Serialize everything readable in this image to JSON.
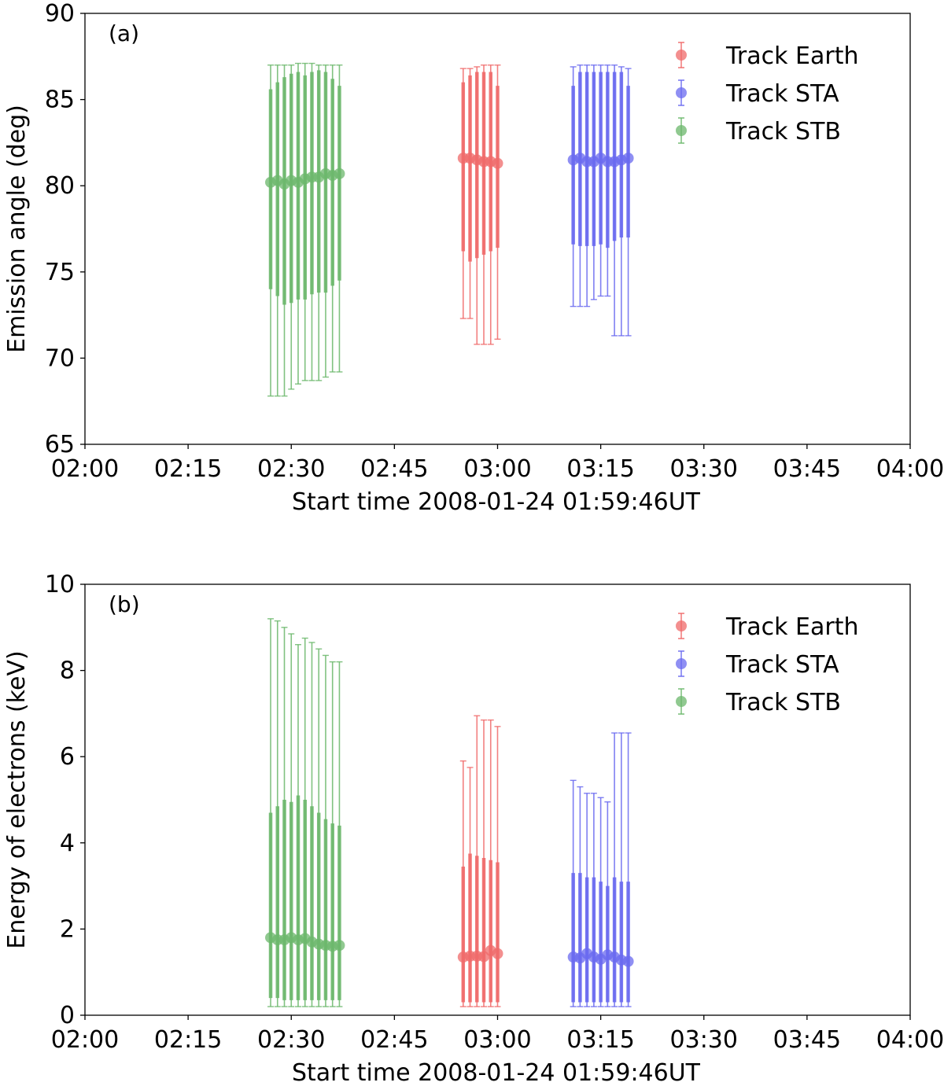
{
  "chart_data": [
    {
      "type": "errorbar",
      "panel_label": "(a)",
      "xlabel": "Start time 2008-01-24 01:59:46UT",
      "ylabel": "Emission angle (deg)",
      "xlim_minutes": [
        0,
        120
      ],
      "ylim": [
        65,
        90
      ],
      "x_tick_values": [
        0,
        15,
        30,
        45,
        60,
        75,
        90,
        105,
        120
      ],
      "x_tick_labels": [
        "02:00",
        "02:15",
        "02:30",
        "02:45",
        "03:00",
        "03:15",
        "03:30",
        "03:45",
        "04:00"
      ],
      "y_ticks": [
        65,
        70,
        75,
        80,
        85,
        90
      ],
      "legend_position": "top-right",
      "series": [
        {
          "name": "Track Earth",
          "color": "#f06a6a",
          "x": [
            55.0,
            56.0,
            57.0,
            58.0,
            59.0,
            60.0
          ],
          "y": [
            81.6,
            81.6,
            81.5,
            81.4,
            81.4,
            81.3
          ],
          "inner": [
            [
              76.2,
              86.0
            ],
            [
              75.6,
              86.4
            ],
            [
              75.8,
              86.6
            ],
            [
              76.0,
              86.6
            ],
            [
              76.2,
              86.6
            ],
            [
              76.4,
              85.8
            ]
          ],
          "outer": [
            [
              72.3,
              86.8
            ],
            [
              72.3,
              86.8
            ],
            [
              70.8,
              86.9
            ],
            [
              70.8,
              87.0
            ],
            [
              70.8,
              87.0
            ],
            [
              71.1,
              87.0
            ]
          ]
        },
        {
          "name": "Track STA",
          "color": "#6a6af0",
          "x": [
            71.0,
            72.0,
            73.0,
            74.0,
            75.0,
            76.0,
            77.0,
            78.0,
            79.0
          ],
          "y": [
            81.5,
            81.6,
            81.4,
            81.4,
            81.6,
            81.4,
            81.4,
            81.5,
            81.6
          ],
          "inner": [
            [
              76.6,
              85.8
            ],
            [
              76.5,
              86.6
            ],
            [
              76.5,
              86.6
            ],
            [
              76.5,
              86.6
            ],
            [
              76.6,
              86.6
            ],
            [
              76.4,
              86.6
            ],
            [
              76.8,
              86.6
            ],
            [
              77.0,
              86.6
            ],
            [
              77.0,
              85.8
            ]
          ],
          "outer": [
            [
              73.0,
              86.9
            ],
            [
              73.0,
              87.0
            ],
            [
              73.0,
              87.0
            ],
            [
              73.4,
              87.0
            ],
            [
              73.6,
              87.0
            ],
            [
              73.6,
              87.0
            ],
            [
              71.3,
              87.0
            ],
            [
              71.3,
              86.9
            ],
            [
              71.3,
              86.8
            ]
          ]
        },
        {
          "name": "Track STB",
          "color": "#6cb86c",
          "x": [
            27.0,
            28.0,
            29.0,
            30.0,
            31.0,
            32.0,
            33.0,
            34.0,
            35.0,
            36.0,
            37.0
          ],
          "y": [
            80.2,
            80.3,
            80.1,
            80.3,
            80.2,
            80.4,
            80.5,
            80.5,
            80.7,
            80.6,
            80.7
          ],
          "inner": [
            [
              74.0,
              85.6
            ],
            [
              73.6,
              86.0
            ],
            [
              73.1,
              86.3
            ],
            [
              73.2,
              86.5
            ],
            [
              73.4,
              86.6
            ],
            [
              73.4,
              86.4
            ],
            [
              73.7,
              86.6
            ],
            [
              73.8,
              86.7
            ],
            [
              73.8,
              86.6
            ],
            [
              74.2,
              86.2
            ],
            [
              74.5,
              85.8
            ]
          ],
          "outer": [
            [
              67.8,
              87.0
            ],
            [
              67.8,
              87.0
            ],
            [
              67.8,
              87.0
            ],
            [
              68.2,
              87.0
            ],
            [
              68.5,
              87.1
            ],
            [
              68.7,
              87.1
            ],
            [
              68.7,
              87.1
            ],
            [
              68.7,
              87.0
            ],
            [
              68.9,
              87.0
            ],
            [
              69.2,
              87.0
            ],
            [
              69.2,
              87.0
            ]
          ]
        }
      ]
    },
    {
      "type": "errorbar",
      "panel_label": "(b)",
      "xlabel": "Start time 2008-01-24 01:59:46UT",
      "ylabel": "Energy of electrons (keV)",
      "xlim_minutes": [
        0,
        120
      ],
      "ylim": [
        0,
        10
      ],
      "x_tick_values": [
        0,
        15,
        30,
        45,
        60,
        75,
        90,
        105,
        120
      ],
      "x_tick_labels": [
        "02:00",
        "02:15",
        "02:30",
        "02:45",
        "03:00",
        "03:15",
        "03:30",
        "03:45",
        "04:00"
      ],
      "y_ticks": [
        0,
        2,
        4,
        6,
        8,
        10
      ],
      "legend_position": "top-right",
      "series": [
        {
          "name": "Track Earth",
          "color": "#f06a6a",
          "x": [
            55.0,
            56.0,
            57.0,
            58.0,
            59.0,
            60.0
          ],
          "y": [
            1.35,
            1.37,
            1.37,
            1.36,
            1.5,
            1.43
          ],
          "inner": [
            [
              0.3,
              3.45
            ],
            [
              0.3,
              3.75
            ],
            [
              0.3,
              3.7
            ],
            [
              0.3,
              3.65
            ],
            [
              0.3,
              3.6
            ],
            [
              0.3,
              3.55
            ]
          ],
          "outer": [
            [
              0.2,
              5.9
            ],
            [
              0.2,
              5.75
            ],
            [
              0.2,
              6.95
            ],
            [
              0.2,
              6.85
            ],
            [
              0.2,
              6.85
            ],
            [
              0.2,
              6.7
            ]
          ]
        },
        {
          "name": "Track STA",
          "color": "#6a6af0",
          "x": [
            71.0,
            72.0,
            73.0,
            74.0,
            75.0,
            76.0,
            77.0,
            78.0,
            79.0
          ],
          "y": [
            1.35,
            1.33,
            1.43,
            1.35,
            1.3,
            1.4,
            1.35,
            1.28,
            1.25
          ],
          "inner": [
            [
              0.3,
              3.3
            ],
            [
              0.3,
              3.3
            ],
            [
              0.3,
              3.2
            ],
            [
              0.3,
              3.2
            ],
            [
              0.3,
              3.1
            ],
            [
              0.3,
              3.0
            ],
            [
              0.3,
              3.2
            ],
            [
              0.3,
              3.1
            ],
            [
              0.3,
              3.1
            ]
          ],
          "outer": [
            [
              0.2,
              5.45
            ],
            [
              0.2,
              5.3
            ],
            [
              0.2,
              5.15
            ],
            [
              0.2,
              5.15
            ],
            [
              0.2,
              5.05
            ],
            [
              0.2,
              4.95
            ],
            [
              0.2,
              6.55
            ],
            [
              0.2,
              6.55
            ],
            [
              0.2,
              6.55
            ]
          ]
        },
        {
          "name": "Track STB",
          "color": "#6cb86c",
          "x": [
            27.0,
            28.0,
            29.0,
            30.0,
            31.0,
            32.0,
            33.0,
            34.0,
            35.0,
            36.0,
            37.0
          ],
          "y": [
            1.8,
            1.75,
            1.75,
            1.8,
            1.75,
            1.78,
            1.7,
            1.65,
            1.62,
            1.6,
            1.62
          ],
          "inner": [
            [
              0.4,
              4.7
            ],
            [
              0.4,
              4.85
            ],
            [
              0.35,
              5.0
            ],
            [
              0.35,
              4.95
            ],
            [
              0.35,
              5.1
            ],
            [
              0.35,
              5.0
            ],
            [
              0.35,
              4.85
            ],
            [
              0.35,
              4.7
            ],
            [
              0.35,
              4.55
            ],
            [
              0.35,
              4.45
            ],
            [
              0.35,
              4.4
            ]
          ],
          "outer": [
            [
              0.2,
              9.2
            ],
            [
              0.2,
              9.15
            ],
            [
              0.2,
              9.0
            ],
            [
              0.2,
              8.85
            ],
            [
              0.2,
              8.6
            ],
            [
              0.2,
              8.75
            ],
            [
              0.2,
              8.65
            ],
            [
              0.2,
              8.5
            ],
            [
              0.2,
              8.35
            ],
            [
              0.2,
              8.2
            ],
            [
              0.2,
              8.2
            ]
          ]
        }
      ]
    }
  ]
}
